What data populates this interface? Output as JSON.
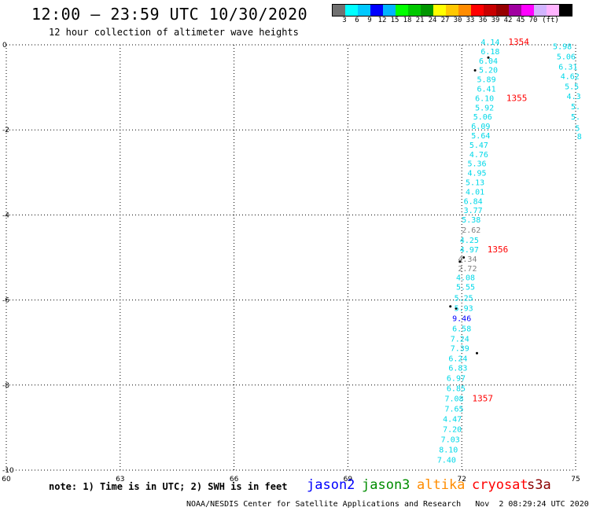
{
  "title": "12:00 – 23:59 UTC 10/30/2020",
  "subtitle": "12 hour collection of altimeter wave heights",
  "scale": {
    "colors": [
      "#707070",
      "#00ffff",
      "#00c8ff",
      "#0000ff",
      "#00b4ff",
      "#00ff00",
      "#00c800",
      "#009600",
      "#ffff00",
      "#ffc800",
      "#ff8c00",
      "#ff0000",
      "#c80000",
      "#960000",
      "#a000a0",
      "#ff00ff",
      "#d2b4ff",
      "#ffb4ff",
      "#000000"
    ],
    "labels": [
      "3",
      "6",
      "9",
      "12",
      "15",
      "18",
      "21",
      "24",
      "27",
      "30",
      "33",
      "36",
      "39",
      "42",
      "45",
      "70",
      "(ft)"
    ]
  },
  "map": {
    "lon_range": [
      60,
      75
    ],
    "lat_range": [
      -10,
      0
    ],
    "lon_ticks": [
      "60",
      "63",
      "66",
      "69",
      "72",
      "75"
    ],
    "lat_ticks": [
      "0",
      "-2",
      "-4",
      "-6",
      "-8",
      "-10"
    ],
    "readings": [
      {
        "v": "4.14",
        "lon": 72.75,
        "lat": 0.0
      },
      {
        "v": "6.18",
        "lon": 72.75,
        "lat": -0.22
      },
      {
        "v": "6.04",
        "lon": 72.7,
        "lat": -0.44
      },
      {
        "v": "5.20",
        "lon": 72.7,
        "lat": -0.66
      },
      {
        "v": "5.89",
        "lon": 72.65,
        "lat": -0.88
      },
      {
        "v": "6.41",
        "lon": 72.65,
        "lat": -1.1
      },
      {
        "v": "6.10",
        "lon": 72.6,
        "lat": -1.32
      },
      {
        "v": "5.92",
        "lon": 72.6,
        "lat": -1.54
      },
      {
        "v": "5.06",
        "lon": 72.55,
        "lat": -1.76
      },
      {
        "v": "6.09",
        "lon": 72.5,
        "lat": -1.98
      },
      {
        "v": "5.64",
        "lon": 72.5,
        "lat": -2.2
      },
      {
        "v": "5.47",
        "lon": 72.45,
        "lat": -2.42
      },
      {
        "v": "4.76",
        "lon": 72.45,
        "lat": -2.64
      },
      {
        "v": "5.36",
        "lon": 72.4,
        "lat": -2.86
      },
      {
        "v": "4.95",
        "lon": 72.4,
        "lat": -3.08
      },
      {
        "v": "5.13",
        "lon": 72.35,
        "lat": -3.3
      },
      {
        "v": "4.01",
        "lon": 72.35,
        "lat": -3.52
      },
      {
        "v": "6.84",
        "lon": 72.3,
        "lat": -3.74
      },
      {
        "v": "3.77",
        "lon": 72.3,
        "lat": -3.96
      },
      {
        "v": "5.38",
        "lon": 72.25,
        "lat": -4.18
      },
      {
        "v": "2.62",
        "lon": 72.25,
        "lat": -4.42,
        "c": "#808080"
      },
      {
        "v": "4.25",
        "lon": 72.2,
        "lat": -4.66
      },
      {
        "v": "4.97",
        "lon": 72.2,
        "lat": -4.88
      },
      {
        "v": "4.34",
        "lon": 72.15,
        "lat": -5.1,
        "c": "#808080"
      },
      {
        "v": "2.72",
        "lon": 72.15,
        "lat": -5.32,
        "c": "#808080"
      },
      {
        "v": "4.08",
        "lon": 72.1,
        "lat": -5.54
      },
      {
        "v": "5.55",
        "lon": 72.1,
        "lat": -5.76
      },
      {
        "v": "5.25",
        "lon": 72.05,
        "lat": -6.02
      },
      {
        "v": "5.93",
        "lon": 72.05,
        "lat": -6.26
      },
      {
        "v": "9.46",
        "lon": 72.0,
        "lat": -6.5,
        "c": "#0000ff"
      },
      {
        "v": "6.58",
        "lon": 72.0,
        "lat": -6.74
      },
      {
        "v": "7.24",
        "lon": 71.95,
        "lat": -6.98
      },
      {
        "v": "7.39",
        "lon": 71.95,
        "lat": -7.2
      },
      {
        "v": "6.24",
        "lon": 71.9,
        "lat": -7.44
      },
      {
        "v": "6.83",
        "lon": 71.9,
        "lat": -7.66
      },
      {
        "v": "6.97",
        "lon": 71.85,
        "lat": -7.9
      },
      {
        "v": "6.85",
        "lon": 71.85,
        "lat": -8.14
      },
      {
        "v": "7.08",
        "lon": 71.8,
        "lat": -8.38
      },
      {
        "v": "7.65",
        "lon": 71.8,
        "lat": -8.62
      },
      {
        "v": "4.47",
        "lon": 71.75,
        "lat": -8.86
      },
      {
        "v": "7.20",
        "lon": 71.75,
        "lat": -9.1
      },
      {
        "v": "7.03",
        "lon": 71.7,
        "lat": -9.34
      },
      {
        "v": "8.10",
        "lon": 71.65,
        "lat": -9.58
      },
      {
        "v": "7.40",
        "lon": 71.6,
        "lat": -9.82
      },
      {
        "v": "5.98",
        "lon": 74.65,
        "lat": -0.1
      },
      {
        "v": "5.06",
        "lon": 74.75,
        "lat": -0.34
      },
      {
        "v": "6.31",
        "lon": 74.8,
        "lat": -0.58
      },
      {
        "v": "4.62",
        "lon": 74.85,
        "lat": -0.8
      },
      {
        "v": "5.5",
        "lon": 74.9,
        "lat": -1.04
      },
      {
        "v": "4.3",
        "lon": 74.95,
        "lat": -1.28
      },
      {
        "v": "5.",
        "lon": 75.0,
        "lat": -1.52
      },
      {
        "v": "5.",
        "lon": 75.0,
        "lat": -1.76
      },
      {
        "v": "5",
        "lon": 75.05,
        "lat": -2.02
      },
      {
        "v": "8",
        "lon": 75.1,
        "lat": -2.22
      }
    ],
    "times": [
      {
        "t": "1354",
        "lon": 73.5,
        "lat": 0.0
      },
      {
        "t": "1355",
        "lon": 73.45,
        "lat": -1.32
      },
      {
        "t": "1356",
        "lon": 72.95,
        "lat": -4.88
      },
      {
        "t": "1357",
        "lon": 72.55,
        "lat": -8.38
      }
    ]
  },
  "footnote": "note: 1) Time is in UTC; 2) SWH is in feet",
  "satellites": [
    {
      "name": "jason2",
      "color": "#0000ff"
    },
    {
      "name": "jason3",
      "color": "#008c00"
    },
    {
      "name": "altika",
      "color": "#ff8c00"
    },
    {
      "name": "cryosat",
      "color": "#ff0000"
    },
    {
      "name": "s3a",
      "color": "#8b0000"
    }
  ],
  "credit": "NOAA/NESDIS Center for Satellite Applications and Research   Nov  2 08:29:24 UTC 2020"
}
